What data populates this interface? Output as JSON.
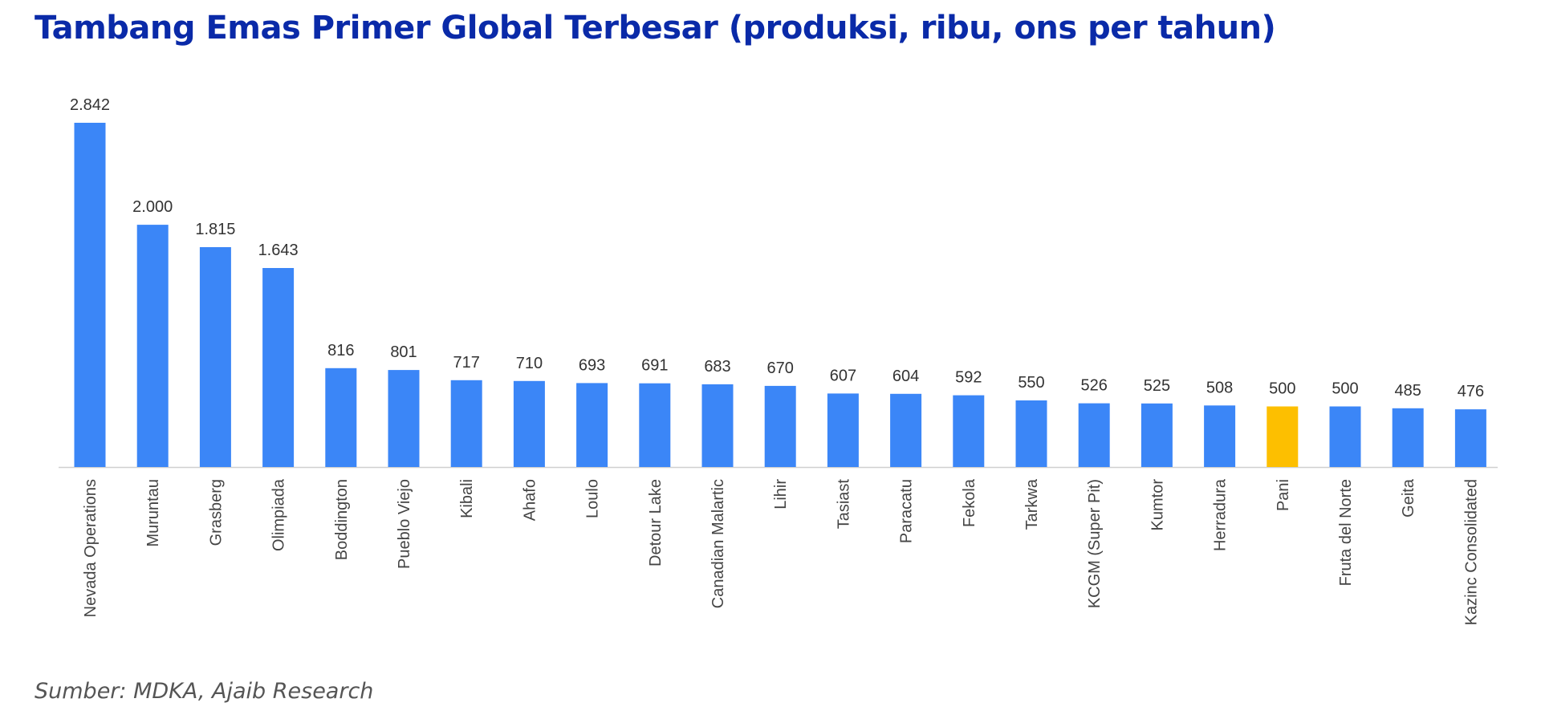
{
  "chart_data": {
    "type": "bar",
    "title": "Tambang Emas Primer Global Terbesar (produksi, ribu, ons per tahun)",
    "xlabel": "",
    "ylabel": "",
    "ylim": [
      0,
      2842
    ],
    "grid": false,
    "legend": "none",
    "bar_color": "#3b86f7",
    "highlight_color": "#fdbf00",
    "highlight_category": "Pani",
    "categories": [
      "Nevada Operations",
      "Muruntau",
      "Grasberg",
      "Olimpiada",
      "Boddington",
      "Pueblo Viejo",
      "Kibali",
      "Ahafo",
      "Loulo",
      "Detour Lake",
      "Canadian Malartic",
      "Lihir",
      "Tasiast",
      "Paracatu",
      "Fekola",
      "Tarkwa",
      "KCGM (Super Pit)",
      "Kumtor",
      "Herradura",
      "Pani",
      "Fruta del Norte",
      "Geita",
      "Kazinc Consolidated"
    ],
    "values": [
      2842,
      2000,
      1815,
      1643,
      816,
      801,
      717,
      710,
      693,
      691,
      683,
      670,
      607,
      604,
      592,
      550,
      526,
      525,
      508,
      500,
      500,
      485,
      476
    ],
    "value_labels": [
      "2.842",
      "2.000",
      "1.815",
      "1.643",
      "816",
      "801",
      "717",
      "710",
      "693",
      "691",
      "683",
      "670",
      "607",
      "604",
      "592",
      "550",
      "526",
      "525",
      "508",
      "500",
      "500",
      "485",
      "476"
    ]
  },
  "source": "Sumber: MDKA, Ajaib Research"
}
